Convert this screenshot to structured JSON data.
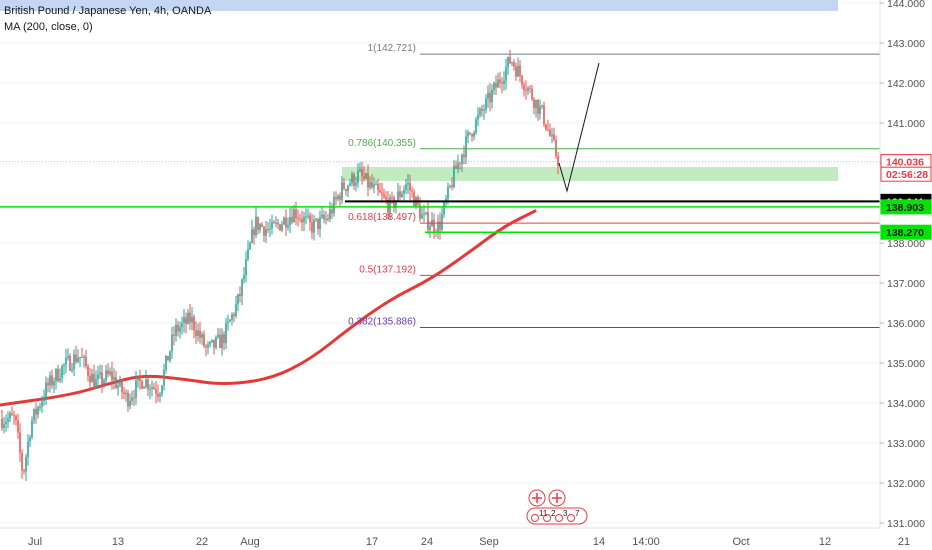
{
  "header": {
    "title": "British Pound / Japanese Yen, 4h, OANDA",
    "indicator": "MA (200, close, 0)"
  },
  "chart_data": {
    "type": "candlestick",
    "symbol": "British Pound / Japanese Yen",
    "interval": "4h",
    "source": "OANDA",
    "ylim": [
      131.0,
      144.0
    ],
    "y_ticks": [
      "131.000",
      "132.000",
      "133.000",
      "134.000",
      "135.000",
      "136.000",
      "137.000",
      "138.000",
      "139.000",
      "140.000",
      "141.000",
      "142.000",
      "143.000",
      "144.000"
    ],
    "x_ticks": [
      "Jul",
      "13",
      "22",
      "Aug",
      "17",
      "24",
      "Sep",
      "14",
      "14:00",
      "Oct",
      "12",
      "21"
    ],
    "price_path": [
      [
        "Jul 1",
        133.6
      ],
      [
        "Jul 2",
        132.2
      ],
      [
        "Jul 3",
        133.5
      ],
      [
        "Jul 5",
        134.4
      ],
      [
        "Jul 7",
        134.9
      ],
      [
        "Jul 9",
        135.2
      ],
      [
        "Jul 11",
        134.5
      ],
      [
        "Jul 13",
        134.7
      ],
      [
        "Jul 15",
        134.1
      ],
      [
        "Jul 17",
        134.6
      ],
      [
        "Jul 19",
        134.3
      ],
      [
        "Jul 21",
        135.8
      ],
      [
        "Jul 23",
        136.1
      ],
      [
        "Jul 25",
        135.3
      ],
      [
        "Jul 27",
        135.6
      ],
      [
        "Jul 29",
        136.6
      ],
      [
        "Jul 31",
        138.5
      ],
      [
        "Aug 2",
        138.3
      ],
      [
        "Aug 5",
        138.8
      ],
      [
        "Aug 7",
        138.4
      ],
      [
        "Aug 9",
        138.6
      ],
      [
        "Aug 11",
        139.4
      ],
      [
        "Aug 13",
        139.7
      ],
      [
        "Aug 15",
        139.3
      ],
      [
        "Aug 17",
        138.9
      ],
      [
        "Aug 19",
        139.5
      ],
      [
        "Aug 21",
        138.6
      ],
      [
        "Aug 23",
        138.4
      ],
      [
        "Aug 25",
        139.8
      ],
      [
        "Aug 27",
        140.8
      ],
      [
        "Aug 29",
        141.5
      ],
      [
        "Sep 1",
        142.6
      ],
      [
        "Sep 3",
        141.9
      ],
      [
        "Sep 5",
        141.2
      ],
      [
        "Sep 7",
        140.0
      ]
    ],
    "ma200_path": [
      [
        "Jul 8",
        134.2
      ],
      [
        "Jul 13",
        134.5
      ],
      [
        "Jul 17",
        134.7
      ],
      [
        "Jul 22",
        134.6
      ],
      [
        "Jul 27",
        134.45
      ],
      [
        "Aug 2",
        134.6
      ],
      [
        "Aug 7",
        135.1
      ],
      [
        "Aug 12",
        135.9
      ],
      [
        "Aug 17",
        136.6
      ],
      [
        "Aug 22",
        137.1
      ],
      [
        "Aug 27",
        137.8
      ],
      [
        "Aug 31",
        138.4
      ],
      [
        "Sep 4",
        138.8
      ]
    ],
    "fib_levels": [
      {
        "label": "1(142.721)",
        "value": 142.721,
        "color": "#787b86"
      },
      {
        "label": "0.786(140.355)",
        "value": 140.355,
        "color": "#4caf50"
      },
      {
        "label": "0.618(138.497)",
        "value": 138.497,
        "color": "#f23645"
      },
      {
        "label": "0.5(137.192)",
        "value": 137.192,
        "color": "#f23645"
      },
      {
        "label": "0.382(135.886)",
        "value": 135.886,
        "color": "#673ab7"
      }
    ],
    "horizontal_lines": [
      {
        "value": 139.041,
        "color": "#000000"
      },
      {
        "value": 138.903,
        "color": "#00e600"
      },
      {
        "value": 138.27,
        "color": "#00e600"
      }
    ],
    "demand_zone": [
      139.55,
      139.9
    ],
    "top_zone": [
      143.8,
      144.2
    ],
    "forecast_path": [
      [
        "Sep 7",
        140.0
      ],
      [
        "Sep 8",
        139.3
      ],
      [
        "Sep 12",
        142.5
      ]
    ],
    "price_labels": [
      {
        "text": "140.036",
        "value": 140.036,
        "bg": "#ffffff",
        "fg": "#f23645",
        "border": "#f23645"
      },
      {
        "text": "02:56:28",
        "value": 139.72,
        "bg": "#ffffff",
        "fg": "#f23645",
        "border": "#f23645"
      },
      {
        "text": "139.041",
        "value": 139.041,
        "bg": "#000000",
        "fg": "#ffffff",
        "border": "#000000"
      },
      {
        "text": "138.903",
        "value": 138.903,
        "bg": "#00e600",
        "fg": "#131722",
        "border": "#00e600"
      },
      {
        "text": "138.270",
        "value": 138.27,
        "bg": "#00e600",
        "fg": "#131722",
        "border": "#00e600"
      }
    ],
    "events": {
      "flags_count": 2,
      "badges": [
        "11",
        "2",
        "3",
        "7"
      ]
    }
  }
}
